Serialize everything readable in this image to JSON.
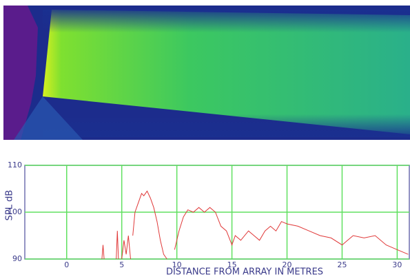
{
  "chart_data": {
    "type": "line",
    "ylabel": "SPL dB",
    "xlabel": "DISTANCE FROM ARRAY IN METRES",
    "color": "#e03838",
    "grid": true,
    "xlim": [
      -3.8,
      31.1
    ],
    "ylim": [
      90,
      110
    ],
    "xticks": [
      0,
      5,
      10,
      15,
      20,
      25,
      30
    ],
    "yticks": [
      90,
      100,
      110
    ],
    "x": [
      3.2,
      3.3,
      3.4,
      3.5,
      4.5,
      4.6,
      4.7,
      4.8,
      5.0,
      5.2,
      5.4,
      5.6,
      5.8,
      5.9,
      6.0,
      6.2,
      6.5,
      6.8,
      7.0,
      7.3,
      7.6,
      7.9,
      8.2,
      8.5,
      8.8,
      9.1,
      9.5,
      9.8,
      10.2,
      10.6,
      11.0,
      11.5,
      12.0,
      12.5,
      13.0,
      13.5,
      14.0,
      14.5,
      15.0,
      15.3,
      15.8,
      16.5,
      17.0,
      17.5,
      18.0,
      18.5,
      19.0,
      19.5,
      20.0,
      21.0,
      22.0,
      23.0,
      24.0,
      25.0,
      25.5,
      26.0,
      27.0,
      28.0,
      29.0,
      30.0,
      31.0
    ],
    "values": [
      90,
      93,
      90,
      null,
      90,
      96,
      90,
      null,
      90,
      94,
      91,
      95,
      90,
      null,
      95,
      100,
      102,
      104,
      103.5,
      104.5,
      103,
      101,
      98,
      94,
      91,
      90,
      null,
      92,
      96,
      99,
      100.5,
      100,
      101,
      100,
      101,
      100,
      97,
      96,
      93,
      95,
      94,
      96,
      95,
      94,
      96,
      97,
      96,
      98,
      97.5,
      97,
      96,
      95,
      94.5,
      93,
      94,
      95,
      94.5,
      95,
      93,
      92,
      91
    ]
  }
}
